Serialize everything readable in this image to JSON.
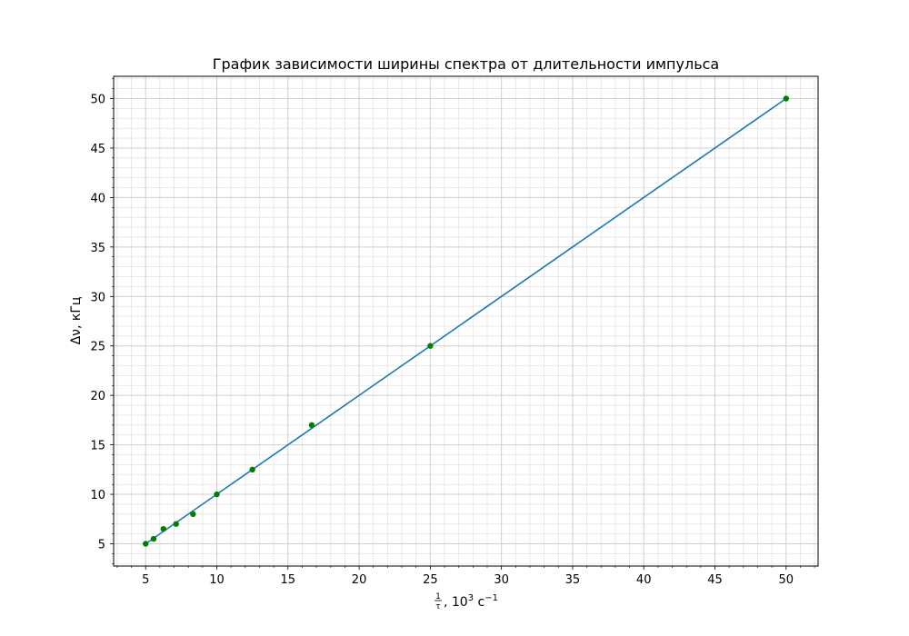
{
  "chart_data": {
    "type": "scatter",
    "title": "График зависимости ширины спектра от длительности импульса",
    "xlabel": {
      "frac_num": "1",
      "frac_den": "τ",
      "text": ", 10",
      "sup": "3",
      "unit": " с",
      "unit_sup": "−1"
    },
    "ylabel": "Δν, кГц",
    "xlim": [
      2.75,
      52.25
    ],
    "ylim": [
      2.75,
      52.25
    ],
    "x_ticks": [
      5,
      10,
      15,
      20,
      25,
      30,
      35,
      40,
      45,
      50
    ],
    "y_ticks": [
      5,
      10,
      15,
      20,
      25,
      30,
      35,
      40,
      45,
      50
    ],
    "minor_tick_step": 1,
    "grid": {
      "major": true,
      "minor": true
    },
    "series": [
      {
        "kind": "fit_line",
        "color": "#1f77b4",
        "x": [
          5,
          50
        ],
        "y": [
          5,
          50
        ]
      },
      {
        "kind": "points",
        "color": "#008000",
        "x": [
          5.0,
          5.56,
          6.25,
          7.14,
          8.33,
          10.0,
          12.5,
          16.67,
          25.0,
          50.0
        ],
        "y": [
          5.0,
          5.5,
          6.5,
          7.0,
          8.0,
          10.0,
          12.5,
          17.0,
          25.0,
          50.0
        ]
      }
    ]
  }
}
